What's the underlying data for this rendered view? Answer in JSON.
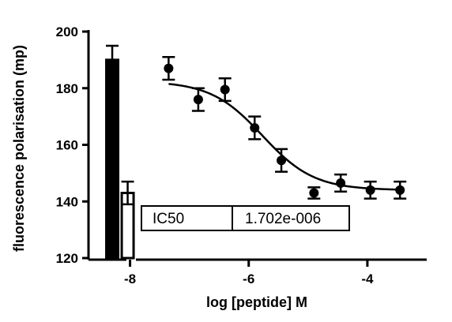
{
  "chart_data": {
    "type": "scatter",
    "xlabel": "log [peptide] M",
    "ylabel": "fluorescence polarisation (mp)",
    "xlim": [
      -8.7,
      -3.0
    ],
    "ylim": [
      120,
      200
    ],
    "x_ticks": [
      -8,
      -6,
      -4
    ],
    "x_tick_labels": [
      "-8",
      "-6",
      "-4"
    ],
    "y_ticks": [
      120,
      140,
      160,
      180,
      200
    ],
    "y_tick_labels": [
      "120",
      "140",
      "160",
      "180",
      "200"
    ],
    "control_bars": [
      {
        "x": -8.3,
        "value": 190,
        "error": 5
      },
      {
        "x": -8.04,
        "value": 143,
        "error": 4
      }
    ],
    "points": [
      {
        "x": -7.35,
        "y": 187,
        "error": 4
      },
      {
        "x": -6.85,
        "y": 176,
        "error": 4
      },
      {
        "x": -6.4,
        "y": 179.5,
        "error": 4
      },
      {
        "x": -5.9,
        "y": 166,
        "error": 4
      },
      {
        "x": -5.45,
        "y": 154.5,
        "error": 4
      },
      {
        "x": -4.9,
        "y": 143,
        "error": 2
      },
      {
        "x": -4.45,
        "y": 146.5,
        "error": 3
      },
      {
        "x": -3.95,
        "y": 144,
        "error": 3
      },
      {
        "x": -3.45,
        "y": 144,
        "error": 3
      }
    ],
    "fit": {
      "top": 182.5,
      "bottom": 144,
      "log_ic50": -5.769,
      "hill": -1.0,
      "x_range": [
        -7.35,
        -3.45
      ]
    },
    "table": {
      "label": "IC50",
      "value": "1.702e-006"
    },
    "grid": false
  }
}
